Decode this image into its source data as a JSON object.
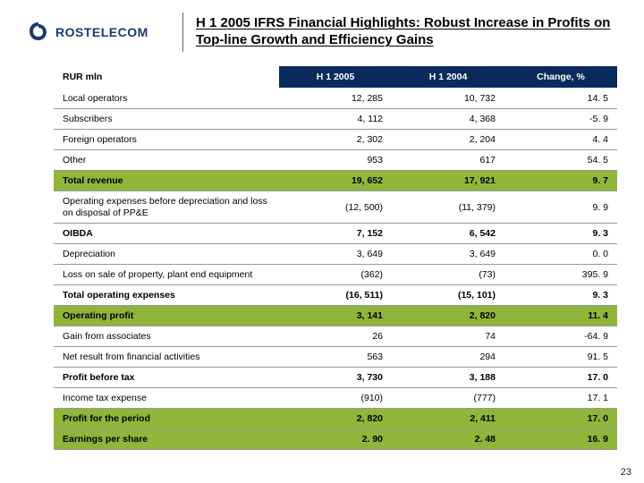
{
  "brand": {
    "name": "ROSTELECOM",
    "logo_color": "#1a3a6e"
  },
  "title": "H 1 2005 IFRS Financial Highlights: Robust Increase in Profits on Top-line Growth and Efficiency Gains",
  "header_bg": "#0a2a5c",
  "highlight_bg": "#8fb53a",
  "columns": {
    "label": "RUR mln",
    "h1_2005": "H 1 2005",
    "h1_2004": "H 1 2004",
    "change": "Change, %"
  },
  "rows": [
    {
      "label": "Local operators",
      "c1": "12, 285",
      "c2": "10, 732",
      "c3": "14. 5",
      "bold": false,
      "hl": false
    },
    {
      "label": "Subscribers",
      "c1": "4, 112",
      "c2": "4, 368",
      "c3": "-5. 9",
      "bold": false,
      "hl": false
    },
    {
      "label": "Foreign operators",
      "c1": "2, 302",
      "c2": "2, 204",
      "c3": "4. 4",
      "bold": false,
      "hl": false
    },
    {
      "label": "Other",
      "c1": "953",
      "c2": "617",
      "c3": "54. 5",
      "bold": false,
      "hl": false
    },
    {
      "label": "Total revenue",
      "c1": "19, 652",
      "c2": "17, 921",
      "c3": "9. 7",
      "bold": true,
      "hl": true
    },
    {
      "label": "Operating expenses before depreciation and loss on disposal of PP&E",
      "c1": "(12, 500)",
      "c2": "(11, 379)",
      "c3": "9. 9",
      "bold": false,
      "hl": false,
      "multiline": true
    },
    {
      "label": "OIBDA",
      "c1": "7, 152",
      "c2": "6, 542",
      "c3": "9. 3",
      "bold": true,
      "hl": false
    },
    {
      "label": "Depreciation",
      "c1": "3, 649",
      "c2": "3, 649",
      "c3": "0. 0",
      "bold": false,
      "hl": false
    },
    {
      "label": "Loss on sale of property, plant end equipment",
      "c1": "(362)",
      "c2": "(73)",
      "c3": "395. 9",
      "bold": false,
      "hl": false
    },
    {
      "label": "Total operating expenses",
      "c1": "(16, 511)",
      "c2": "(15, 101)",
      "c3": "9. 3",
      "bold": true,
      "hl": false
    },
    {
      "label": "Operating profit",
      "c1": "3, 141",
      "c2": "2, 820",
      "c3": "11. 4",
      "bold": true,
      "hl": true
    },
    {
      "label": "Gain from associates",
      "c1": "26",
      "c2": "74",
      "c3": "-64. 9",
      "bold": false,
      "hl": false
    },
    {
      "label": "Net result from financial activities",
      "c1": "563",
      "c2": "294",
      "c3": "91. 5",
      "bold": false,
      "hl": false
    },
    {
      "label": "Profit before tax",
      "c1": "3, 730",
      "c2": "3, 188",
      "c3": "17. 0",
      "bold": true,
      "hl": false
    },
    {
      "label": "Income tax expense",
      "c1": "(910)",
      "c2": "(777)",
      "c3": "17. 1",
      "bold": false,
      "hl": false
    },
    {
      "label": "Profit for the period",
      "c1": "2, 820",
      "c2": "2, 411",
      "c3": "17. 0",
      "bold": true,
      "hl": true
    },
    {
      "label": "Earnings per share",
      "c1": "2. 90",
      "c2": "2. 48",
      "c3": "16. 9",
      "bold": true,
      "hl": true
    }
  ],
  "page_number": "23"
}
